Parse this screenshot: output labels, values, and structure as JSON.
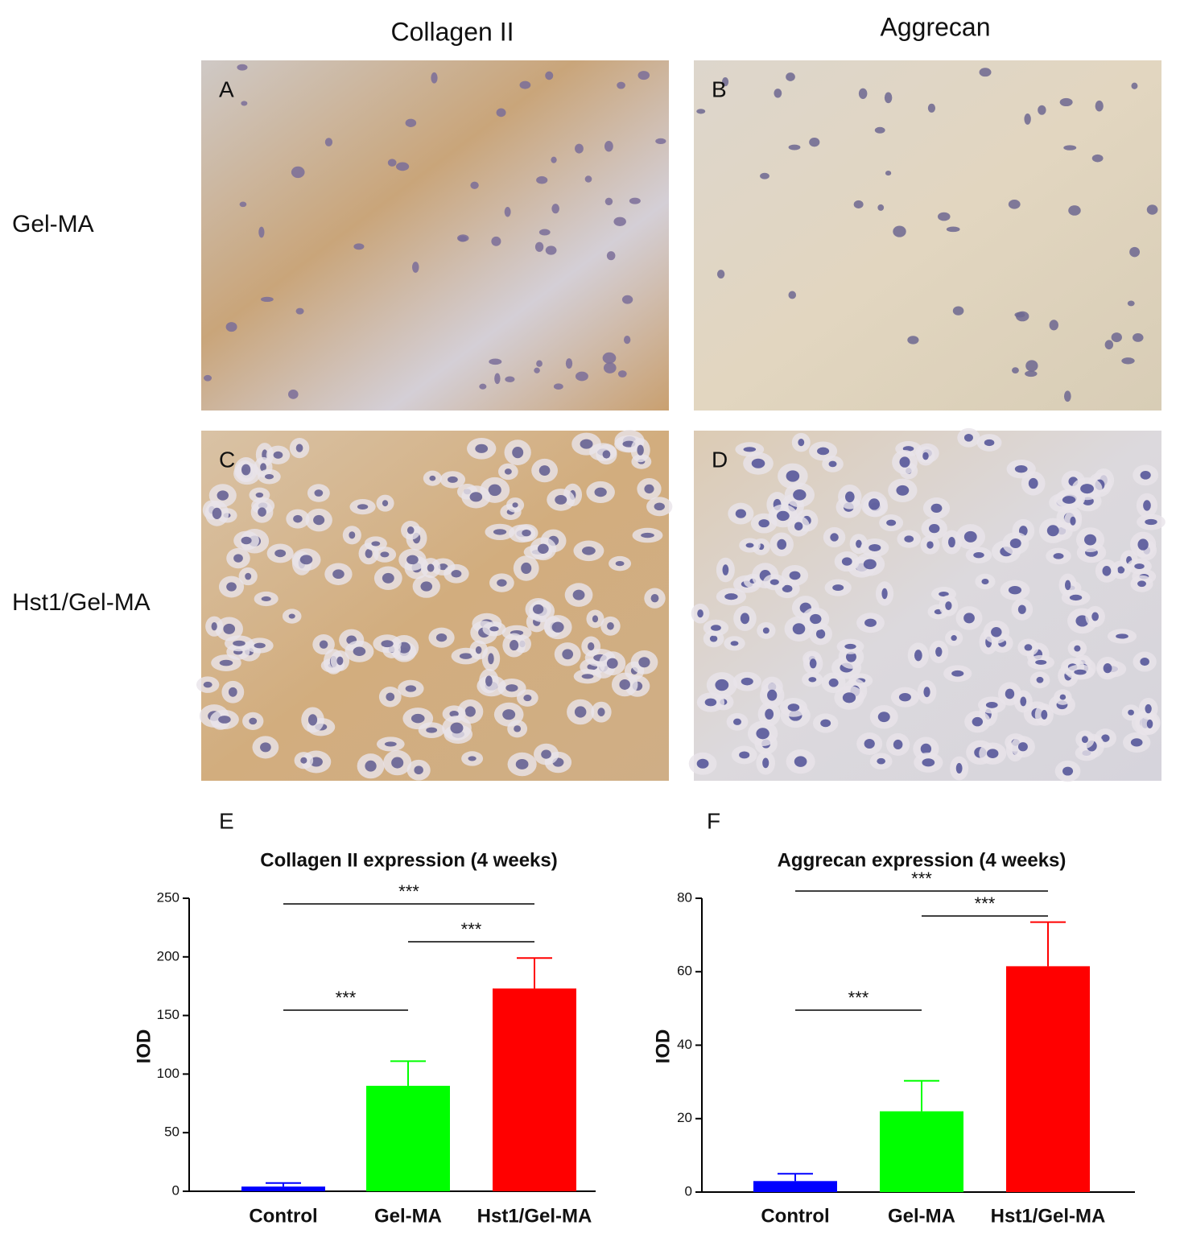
{
  "figure": {
    "columns": [
      "Collagen II",
      "Aggrecan"
    ],
    "rows": [
      "Gel-MA",
      "Hst1/Gel-MA"
    ],
    "panels": [
      "A",
      "B",
      "C",
      "D"
    ]
  },
  "chart_data": [
    {
      "panel": "E",
      "type": "bar",
      "title": "Collagen II expression (4 weeks)",
      "ylabel": "IOD",
      "categories": [
        "Control",
        "Gel-MA",
        "Hst1/Gel-MA"
      ],
      "values": [
        4,
        90,
        173
      ],
      "errors": [
        3,
        21,
        26
      ],
      "colors": [
        "#0000ff",
        "#00ff00",
        "#ff0000"
      ],
      "ylim": [
        0,
        250
      ],
      "yticks": [
        0,
        50,
        100,
        150,
        200,
        250
      ],
      "annotations": [
        {
          "label": "***",
          "between": [
            "Control",
            "Hst1/Gel-MA"
          ]
        },
        {
          "label": "***",
          "between": [
            "Gel-MA",
            "Hst1/Gel-MA"
          ]
        },
        {
          "label": "***",
          "between": [
            "Control",
            "Gel-MA"
          ]
        }
      ]
    },
    {
      "panel": "F",
      "type": "bar",
      "title": "Aggrecan expression (4 weeks)",
      "ylabel": "IOD",
      "categories": [
        "Control",
        "Gel-MA",
        "Hst1/Gel-MA"
      ],
      "values": [
        3,
        22,
        61.5
      ],
      "errors": [
        2,
        8.3,
        12
      ],
      "colors": [
        "#0000ff",
        "#00ff00",
        "#ff0000"
      ],
      "ylim": [
        0,
        80
      ],
      "yticks": [
        0,
        20,
        40,
        60,
        80
      ],
      "annotations": [
        {
          "label": "***",
          "between": [
            "Control",
            "Hst1/Gel-MA"
          ]
        },
        {
          "label": "***",
          "between": [
            "Gel-MA",
            "Hst1/Gel-MA"
          ]
        },
        {
          "label": "***",
          "between": [
            "Control",
            "Gel-MA"
          ]
        }
      ]
    }
  ]
}
